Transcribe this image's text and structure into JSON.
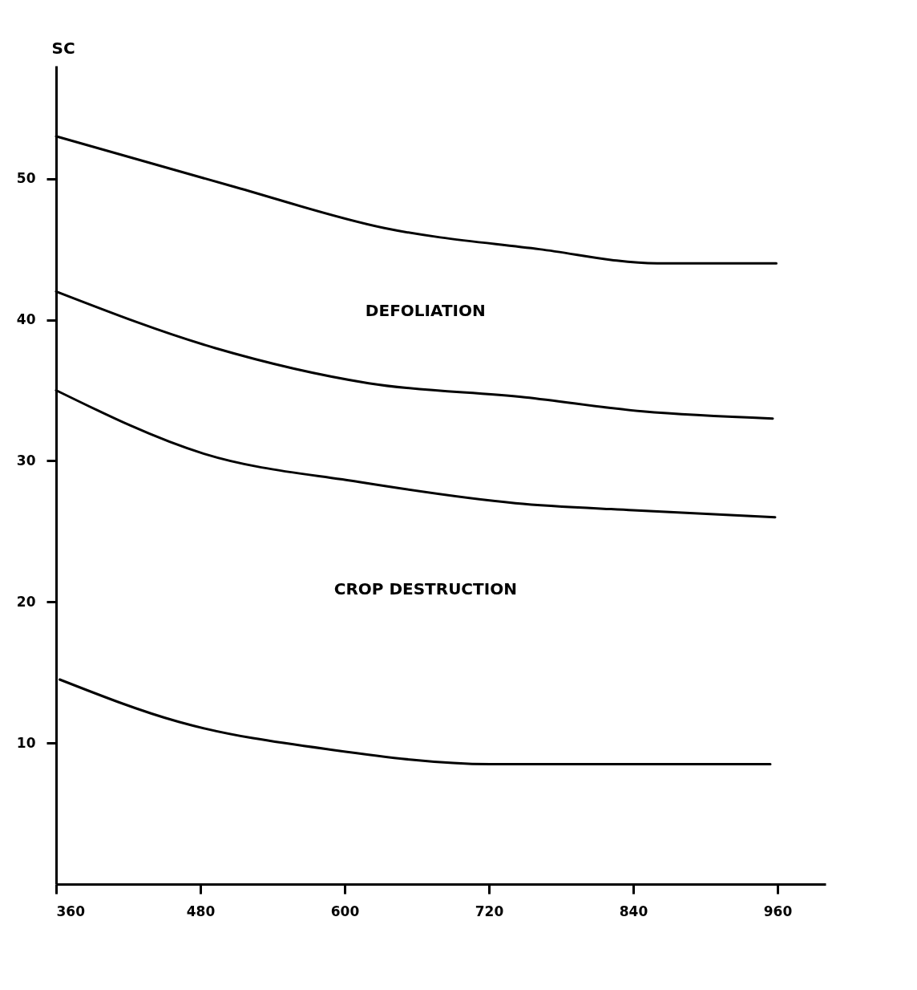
{
  "chart_data": {
    "type": "line",
    "ylabel": "SC",
    "series": [
      {
        "color": "#000000",
        "x": [
          360,
          505,
          633,
          762,
          860,
          959
        ],
        "values": [
          53,
          49.5,
          46.5,
          45,
          44,
          44
        ]
      },
      {
        "color": "#000000",
        "x": [
          360,
          492,
          620,
          750,
          848,
          956
        ],
        "values": [
          42,
          38,
          35.5,
          34.5,
          33.5,
          33
        ]
      },
      {
        "color": "#000000",
        "x": [
          360,
          483,
          612,
          742,
          840,
          958
        ],
        "values": [
          35,
          30.5,
          28.5,
          27,
          26.5,
          26
        ]
      },
      {
        "color": "#000000",
        "x": [
          363,
          462,
          591,
          721,
          820,
          954
        ],
        "values": [
          14.5,
          11.5,
          9.5,
          8.5,
          8.5,
          8.5
        ]
      }
    ],
    "xlim": [
      360,
      1000
    ],
    "xticks": [
      360,
      480,
      600,
      720,
      840,
      960
    ],
    "ylim": [
      0,
      58
    ],
    "yticks": [
      10,
      20,
      30,
      40,
      50
    ],
    "grid": false,
    "legend": false,
    "marker": "none",
    "line_style": "solid",
    "annotations": [
      "DEFOLIATION",
      "CROP DESTRUCTION"
    ]
  }
}
